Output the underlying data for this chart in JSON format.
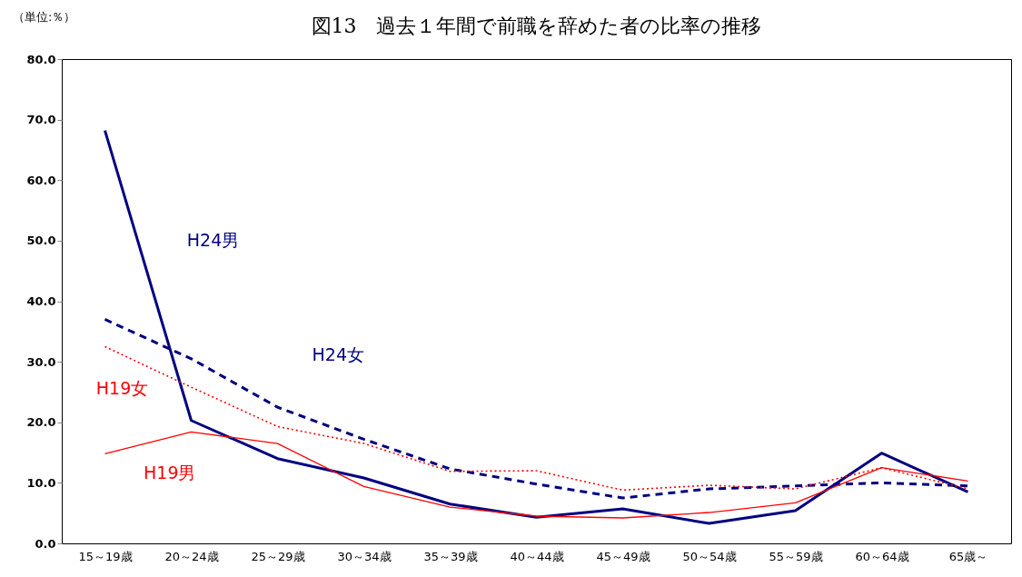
{
  "chart_data": {
    "type": "line",
    "title": "図13　過去１年間で前職を辞めた者の比率の推移",
    "annotations": [
      "（単位:％）"
    ],
    "categories": [
      "15～19歳",
      "20～24歳",
      "25～29歳",
      "30～34歳",
      "35～39歳",
      "40～44歳",
      "45～49歳",
      "50～54歳",
      "55～59歳",
      "60～64歳",
      "65歳～"
    ],
    "series": [
      {
        "name": "H24男",
        "color": "#000080",
        "line_style": "solid",
        "values": [
          68.2,
          20.3,
          14.0,
          10.8,
          6.5,
          4.3,
          5.7,
          3.3,
          5.4,
          14.9,
          8.5
        ]
      },
      {
        "name": "H24女",
        "color": "#000080",
        "line_style": "dashed",
        "values": [
          37.0,
          30.5,
          22.5,
          17.2,
          12.3,
          9.8,
          7.5,
          9.0,
          9.5,
          10.0,
          9.5
        ]
      },
      {
        "name": "H19女",
        "color": "#ff0000",
        "line_style": "dotted",
        "values": [
          32.5,
          25.8,
          19.3,
          16.5,
          11.9,
          12.0,
          8.8,
          9.6,
          9.0,
          12.5,
          9.0
        ]
      },
      {
        "name": "H19男",
        "color": "#ff0000",
        "line_style": "solid",
        "values": [
          14.8,
          18.4,
          16.5,
          9.4,
          6.0,
          4.5,
          4.2,
          5.1,
          6.7,
          12.5,
          10.3
        ]
      }
    ],
    "ylim": [
      0,
      80
    ],
    "yticks": [
      {
        "value": 0,
        "label": "0.0"
      },
      {
        "value": 10,
        "label": "10.0"
      },
      {
        "value": 20,
        "label": "20.0"
      },
      {
        "value": 30,
        "label": "30.0"
      },
      {
        "value": 40,
        "label": "40.0"
      },
      {
        "value": 50,
        "label": "50.0"
      },
      {
        "value": 60,
        "label": "60.0"
      },
      {
        "value": 70,
        "label": "70.0"
      },
      {
        "value": 80,
        "label": "80.0"
      }
    ],
    "grid": false,
    "legend": false,
    "marker": "none"
  }
}
